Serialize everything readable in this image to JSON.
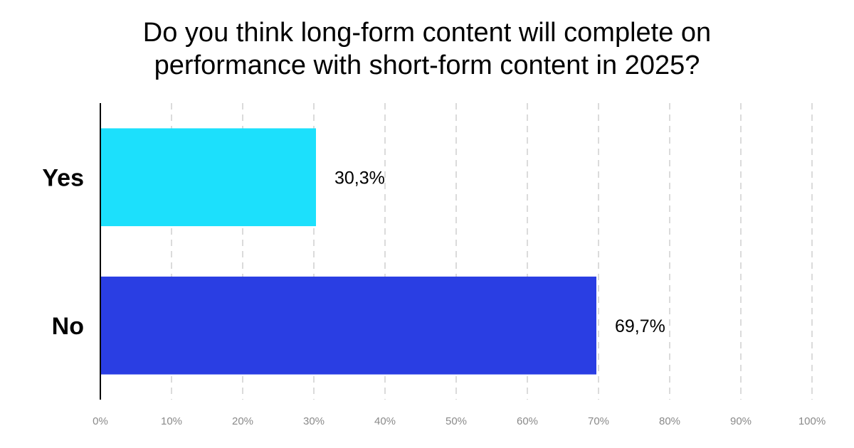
{
  "chart_data": {
    "type": "bar",
    "orientation": "horizontal",
    "title_lines": [
      "Do you think long-form content will complete on",
      "performance with short-form content in 2025?"
    ],
    "categories": [
      "Yes",
      "No"
    ],
    "values": [
      30.3,
      69.7
    ],
    "data_labels": [
      "30,3%",
      "69,7%"
    ],
    "colors": [
      "#1CE0FC",
      "#2A3EE3"
    ],
    "xlim": [
      0,
      100
    ],
    "x_ticks": [
      0,
      10,
      20,
      30,
      40,
      50,
      60,
      70,
      80,
      90,
      100
    ],
    "x_tick_labels": [
      "0%",
      "10%",
      "20%",
      "30%",
      "40%",
      "50%",
      "60%",
      "70%",
      "80%",
      "90%",
      "100%"
    ],
    "grid": "vertical dashed",
    "legend": "none"
  }
}
